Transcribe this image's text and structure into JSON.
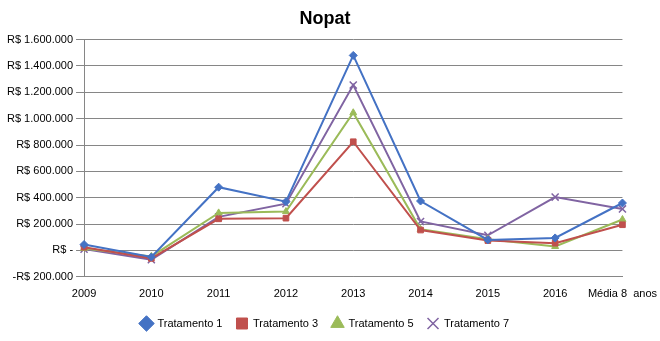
{
  "chart_data": {
    "type": "line",
    "title": "Nopat",
    "categories": [
      "2009",
      "2010",
      "2011",
      "2012",
      "2013",
      "2014",
      "2015",
      "2016",
      "Média 8  anos"
    ],
    "series": [
      {
        "name": "Tratamento 1",
        "color": "#4472c4",
        "marker": "diamond",
        "values": [
          45000,
          -50000,
          480000,
          370000,
          1480000,
          375000,
          80000,
          95000,
          360000
        ]
      },
      {
        "name": "Tratamento 3",
        "color": "#c0504d",
        "marker": "square",
        "values": [
          25000,
          -60000,
          240000,
          245000,
          825000,
          155000,
          75000,
          55000,
          195000
        ]
      },
      {
        "name": "Tratamento 5",
        "color": "#9bbb59",
        "marker": "triangle",
        "values": [
          15000,
          -45000,
          285000,
          295000,
          1045000,
          160000,
          85000,
          30000,
          235000
        ]
      },
      {
        "name": "Tratamento 7",
        "color": "#8064a2",
        "marker": "cross",
        "values": [
          10000,
          -70000,
          255000,
          355000,
          1255000,
          220000,
          115000,
          405000,
          315000
        ]
      }
    ],
    "ylim": [
      -200000,
      1600000
    ],
    "yticks": [
      {
        "value": -200000,
        "label": "-R$ 200.000"
      },
      {
        "value": 0,
        "label": "R$ -"
      },
      {
        "value": 200000,
        "label": "R$ 200.000"
      },
      {
        "value": 400000,
        "label": "R$ 400.000"
      },
      {
        "value": 600000,
        "label": "R$ 600.000"
      },
      {
        "value": 800000,
        "label": "R$ 800.000"
      },
      {
        "value": 1000000,
        "label": "R$ 1.000.000"
      },
      {
        "value": 1200000,
        "label": "R$ 1.200.000"
      },
      {
        "value": 1400000,
        "label": "R$ 1.400.000"
      },
      {
        "value": 1600000,
        "label": "R$ 1.600.000"
      }
    ],
    "grid": true,
    "legend": "bottom"
  }
}
